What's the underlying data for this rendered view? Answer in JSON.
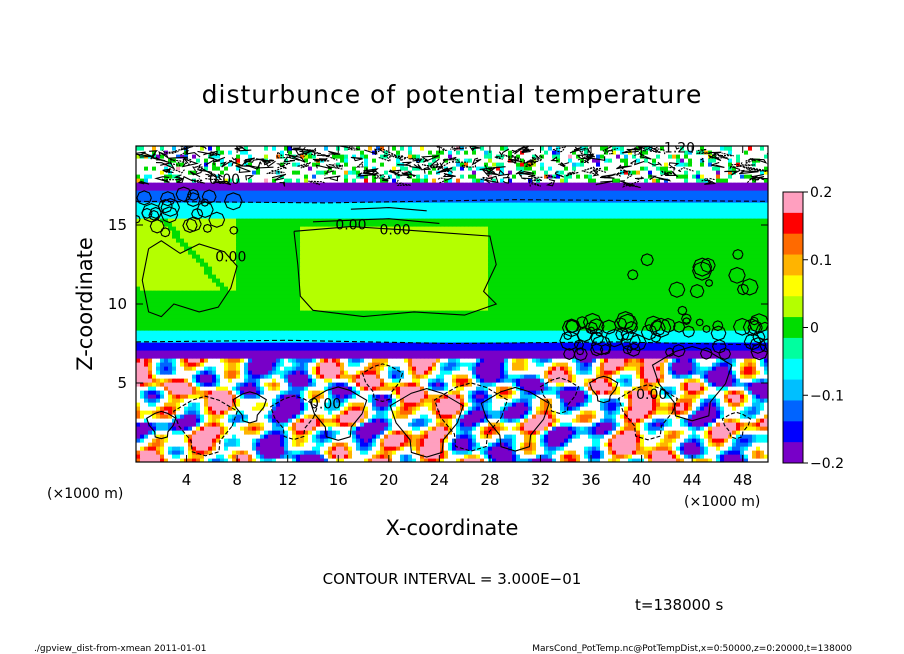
{
  "chart_data": {
    "type": "heatmap",
    "title": "disturbunce of potential temperature",
    "xlabel": "X-coordinate",
    "ylabel": "Z-coordinate",
    "x_unit": "(×1000 m)",
    "z_unit": "(×1000 m)",
    "xlim": [
      0,
      50
    ],
    "ylim": [
      0,
      20
    ],
    "x_ticks": [
      4,
      8,
      12,
      16,
      20,
      24,
      28,
      32,
      36,
      40,
      44,
      48
    ],
    "y_ticks": [
      5,
      10,
      15
    ],
    "colorbar": {
      "range": [
        -0.2,
        0.2
      ],
      "ticks": [
        "0.2",
        "0.1",
        "0",
        "−0.1",
        "−0.2"
      ],
      "colors": [
        "#ff9fbf",
        "#ff0000",
        "#ff6a00",
        "#ffb400",
        "#ffff00",
        "#b4ff00",
        "#00dd00",
        "#00ff9f",
        "#00ffff",
        "#00bfff",
        "#0064ff",
        "#0000ff",
        "#7800c8"
      ]
    },
    "bands": [
      {
        "z": [
          0,
          7.0
        ],
        "level": "mixed (strong ±)"
      },
      {
        "z": [
          7.0,
          7.5
        ],
        "level": "-0.15"
      },
      {
        "z": [
          7.5,
          16.5
        ],
        "level": "0.0"
      },
      {
        "z": [
          16.5,
          17.2
        ],
        "level": "-0.12"
      },
      {
        "z": [
          17.2,
          20
        ],
        "level": "noisy"
      }
    ],
    "contour_labels": [
      {
        "text": "0.00",
        "x": 17.0,
        "z": 14.7
      },
      {
        "text": "0.00",
        "x": 20.5,
        "z": 14.4
      },
      {
        "text": "0.00",
        "x": 7.5,
        "z": 12.7
      },
      {
        "text": "0.00",
        "x": 15.0,
        "z": 3.4
      },
      {
        "text": "0.00",
        "x": 40.8,
        "z": 4.0
      },
      {
        "text": "0.00",
        "x": 7.0,
        "z": 17.6
      },
      {
        "text": "1.20",
        "x": 43.0,
        "z": 19.6
      }
    ],
    "contour_interval": "CONTOUR INTERVAL = 3.000E−01",
    "time_label": "t=138000 s"
  },
  "footer": {
    "left": "./gpview_dist-from-xmean  2011-01-01",
    "right": "MarsCond_PotTemp.nc@PotTempDist,x=0:50000,z=0:20000,t=138000"
  }
}
